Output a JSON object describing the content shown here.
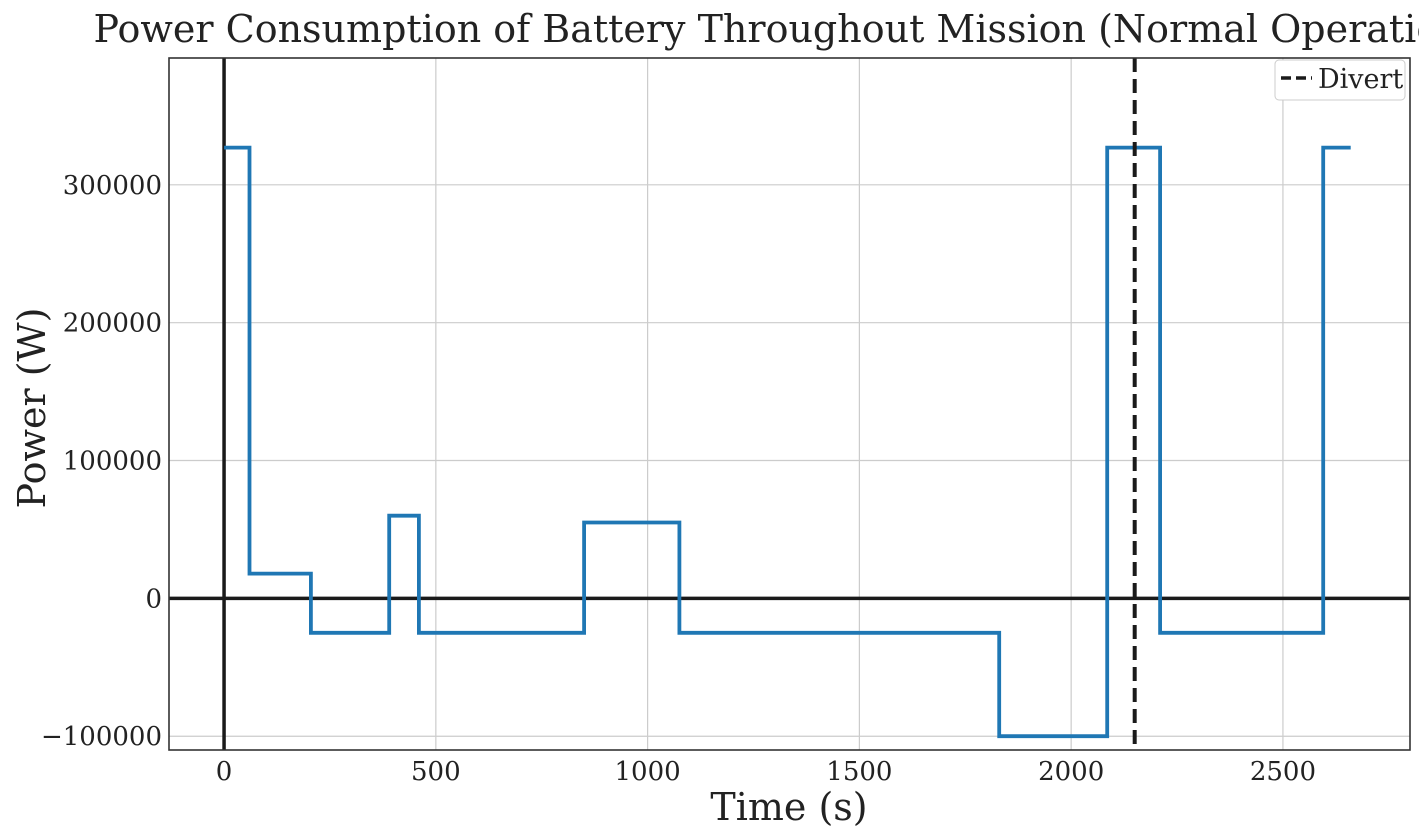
{
  "chart_data": {
    "type": "line",
    "title": "Power Consumption of Battery Throughout Mission (Normal Operation)",
    "xlabel": "Time (s)",
    "ylabel": "Power (W)",
    "xlim": [
      -130,
      2800
    ],
    "ylim": [
      -110000,
      392000
    ],
    "x_ticks": [
      0,
      500,
      1000,
      1500,
      2000,
      2500
    ],
    "y_ticks": [
      -100000,
      0,
      100000,
      200000,
      300000
    ],
    "x_tick_labels": [
      "0",
      "500",
      "1000",
      "1500",
      "2000",
      "2500"
    ],
    "y_tick_labels": [
      "−100000",
      "0",
      "100000",
      "200000",
      "300000"
    ],
    "grid": true,
    "legend_position": "top-right",
    "series": [
      {
        "color": "#1f77b4",
        "step": true,
        "x": [
          0,
          60,
          60,
          205,
          205,
          390,
          390,
          460,
          460,
          850,
          850,
          1075,
          1075,
          1830,
          1830,
          2085,
          2085,
          2210,
          2210,
          2595,
          2595,
          2660
        ],
        "y": [
          327000,
          327000,
          18000,
          18000,
          -25000,
          -25000,
          60000,
          60000,
          -25000,
          -25000,
          55000,
          55000,
          -25000,
          -25000,
          -100000,
          -100000,
          327000,
          327000,
          -25000,
          -25000,
          327000,
          327000
        ]
      }
    ],
    "reference_lines": [
      {
        "orientation": "vertical",
        "x": 0,
        "color": "#1a1a1a"
      },
      {
        "orientation": "horizontal",
        "y": 0,
        "color": "#1a1a1a"
      }
    ],
    "markers": [
      {
        "orientation": "vertical",
        "x": 2150,
        "name": "Divert",
        "style": "dashed",
        "color": "#1a1a1a"
      }
    ]
  }
}
